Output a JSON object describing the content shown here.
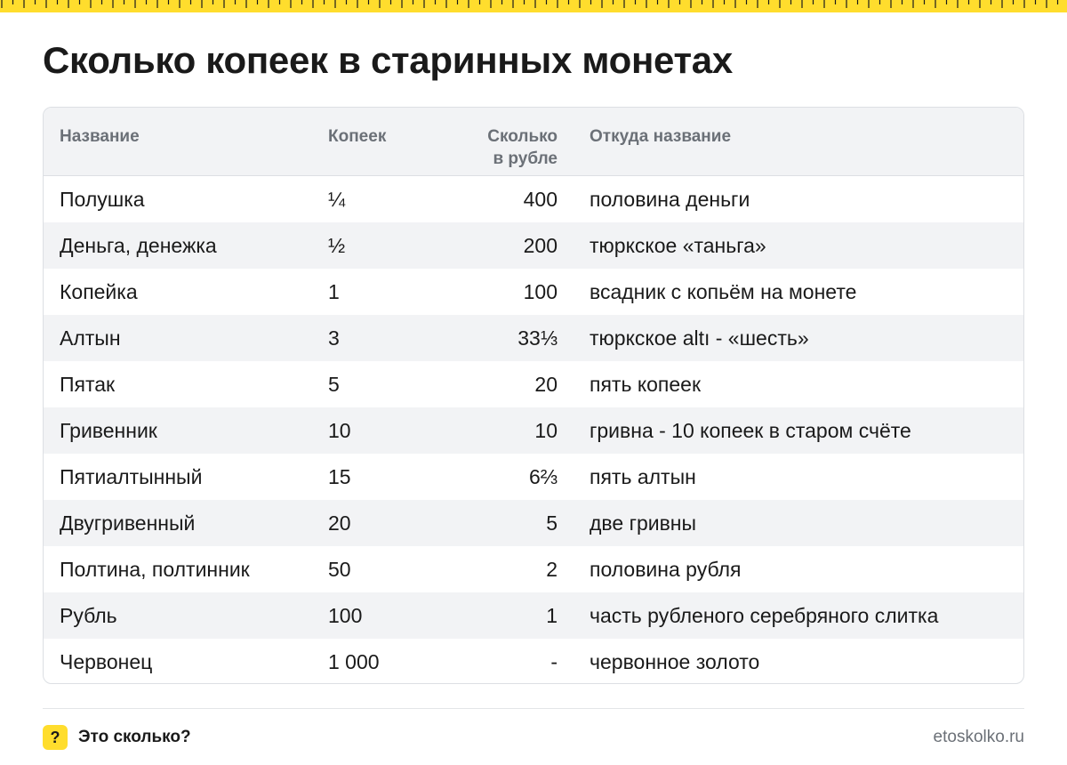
{
  "colors": {
    "accent": "#ffdd2d",
    "header_bg": "#f2f3f5",
    "header_text": "#6b7077",
    "text": "#1a1a1a",
    "border": "#dcdfe3"
  },
  "title": "Сколько копеек в старинных монетах",
  "table": {
    "headers": {
      "name": "Название",
      "kopecks": "Копеек",
      "per_ruble_line1": "Сколько",
      "per_ruble_line2": "в рубле",
      "origin": "Откуда название"
    },
    "rows": [
      {
        "name": "Полушка",
        "kopecks": "¼",
        "per_ruble": "400",
        "origin": "половина деньги"
      },
      {
        "name": "Деньга, денежка",
        "kopecks": "½",
        "per_ruble": "200",
        "origin": "тюркское «таньга»"
      },
      {
        "name": "Копейка",
        "kopecks": "1",
        "per_ruble": "100",
        "origin": "всадник с копьём на монете"
      },
      {
        "name": "Алтын",
        "kopecks": "3",
        "per_ruble": "33⅓",
        "origin": "тюркское altı - «шесть»"
      },
      {
        "name": "Пятак",
        "kopecks": "5",
        "per_ruble": "20",
        "origin": "пять копеек"
      },
      {
        "name": "Гривенник",
        "kopecks": "10",
        "per_ruble": "10",
        "origin": "гривна - 10 копеек в старом счёте"
      },
      {
        "name": "Пятиалтынный",
        "kopecks": "15",
        "per_ruble": "6⅔",
        "origin": "пять алтын"
      },
      {
        "name": "Двугривенный",
        "kopecks": "20",
        "per_ruble": "5",
        "origin": "две гривны"
      },
      {
        "name": "Полтина, полтинник",
        "kopecks": "50",
        "per_ruble": "2",
        "origin": "половина рубля"
      },
      {
        "name": "Рубль",
        "kopecks": "100",
        "per_ruble": "1",
        "origin": "часть рубленого серебряного слитка"
      },
      {
        "name": "Червонец",
        "kopecks": "1 000",
        "per_ruble": "-",
        "origin": "червонное золото"
      }
    ]
  },
  "footer": {
    "badge": "?",
    "brand": "Это сколько?",
    "site": "etoskolko.ru"
  }
}
